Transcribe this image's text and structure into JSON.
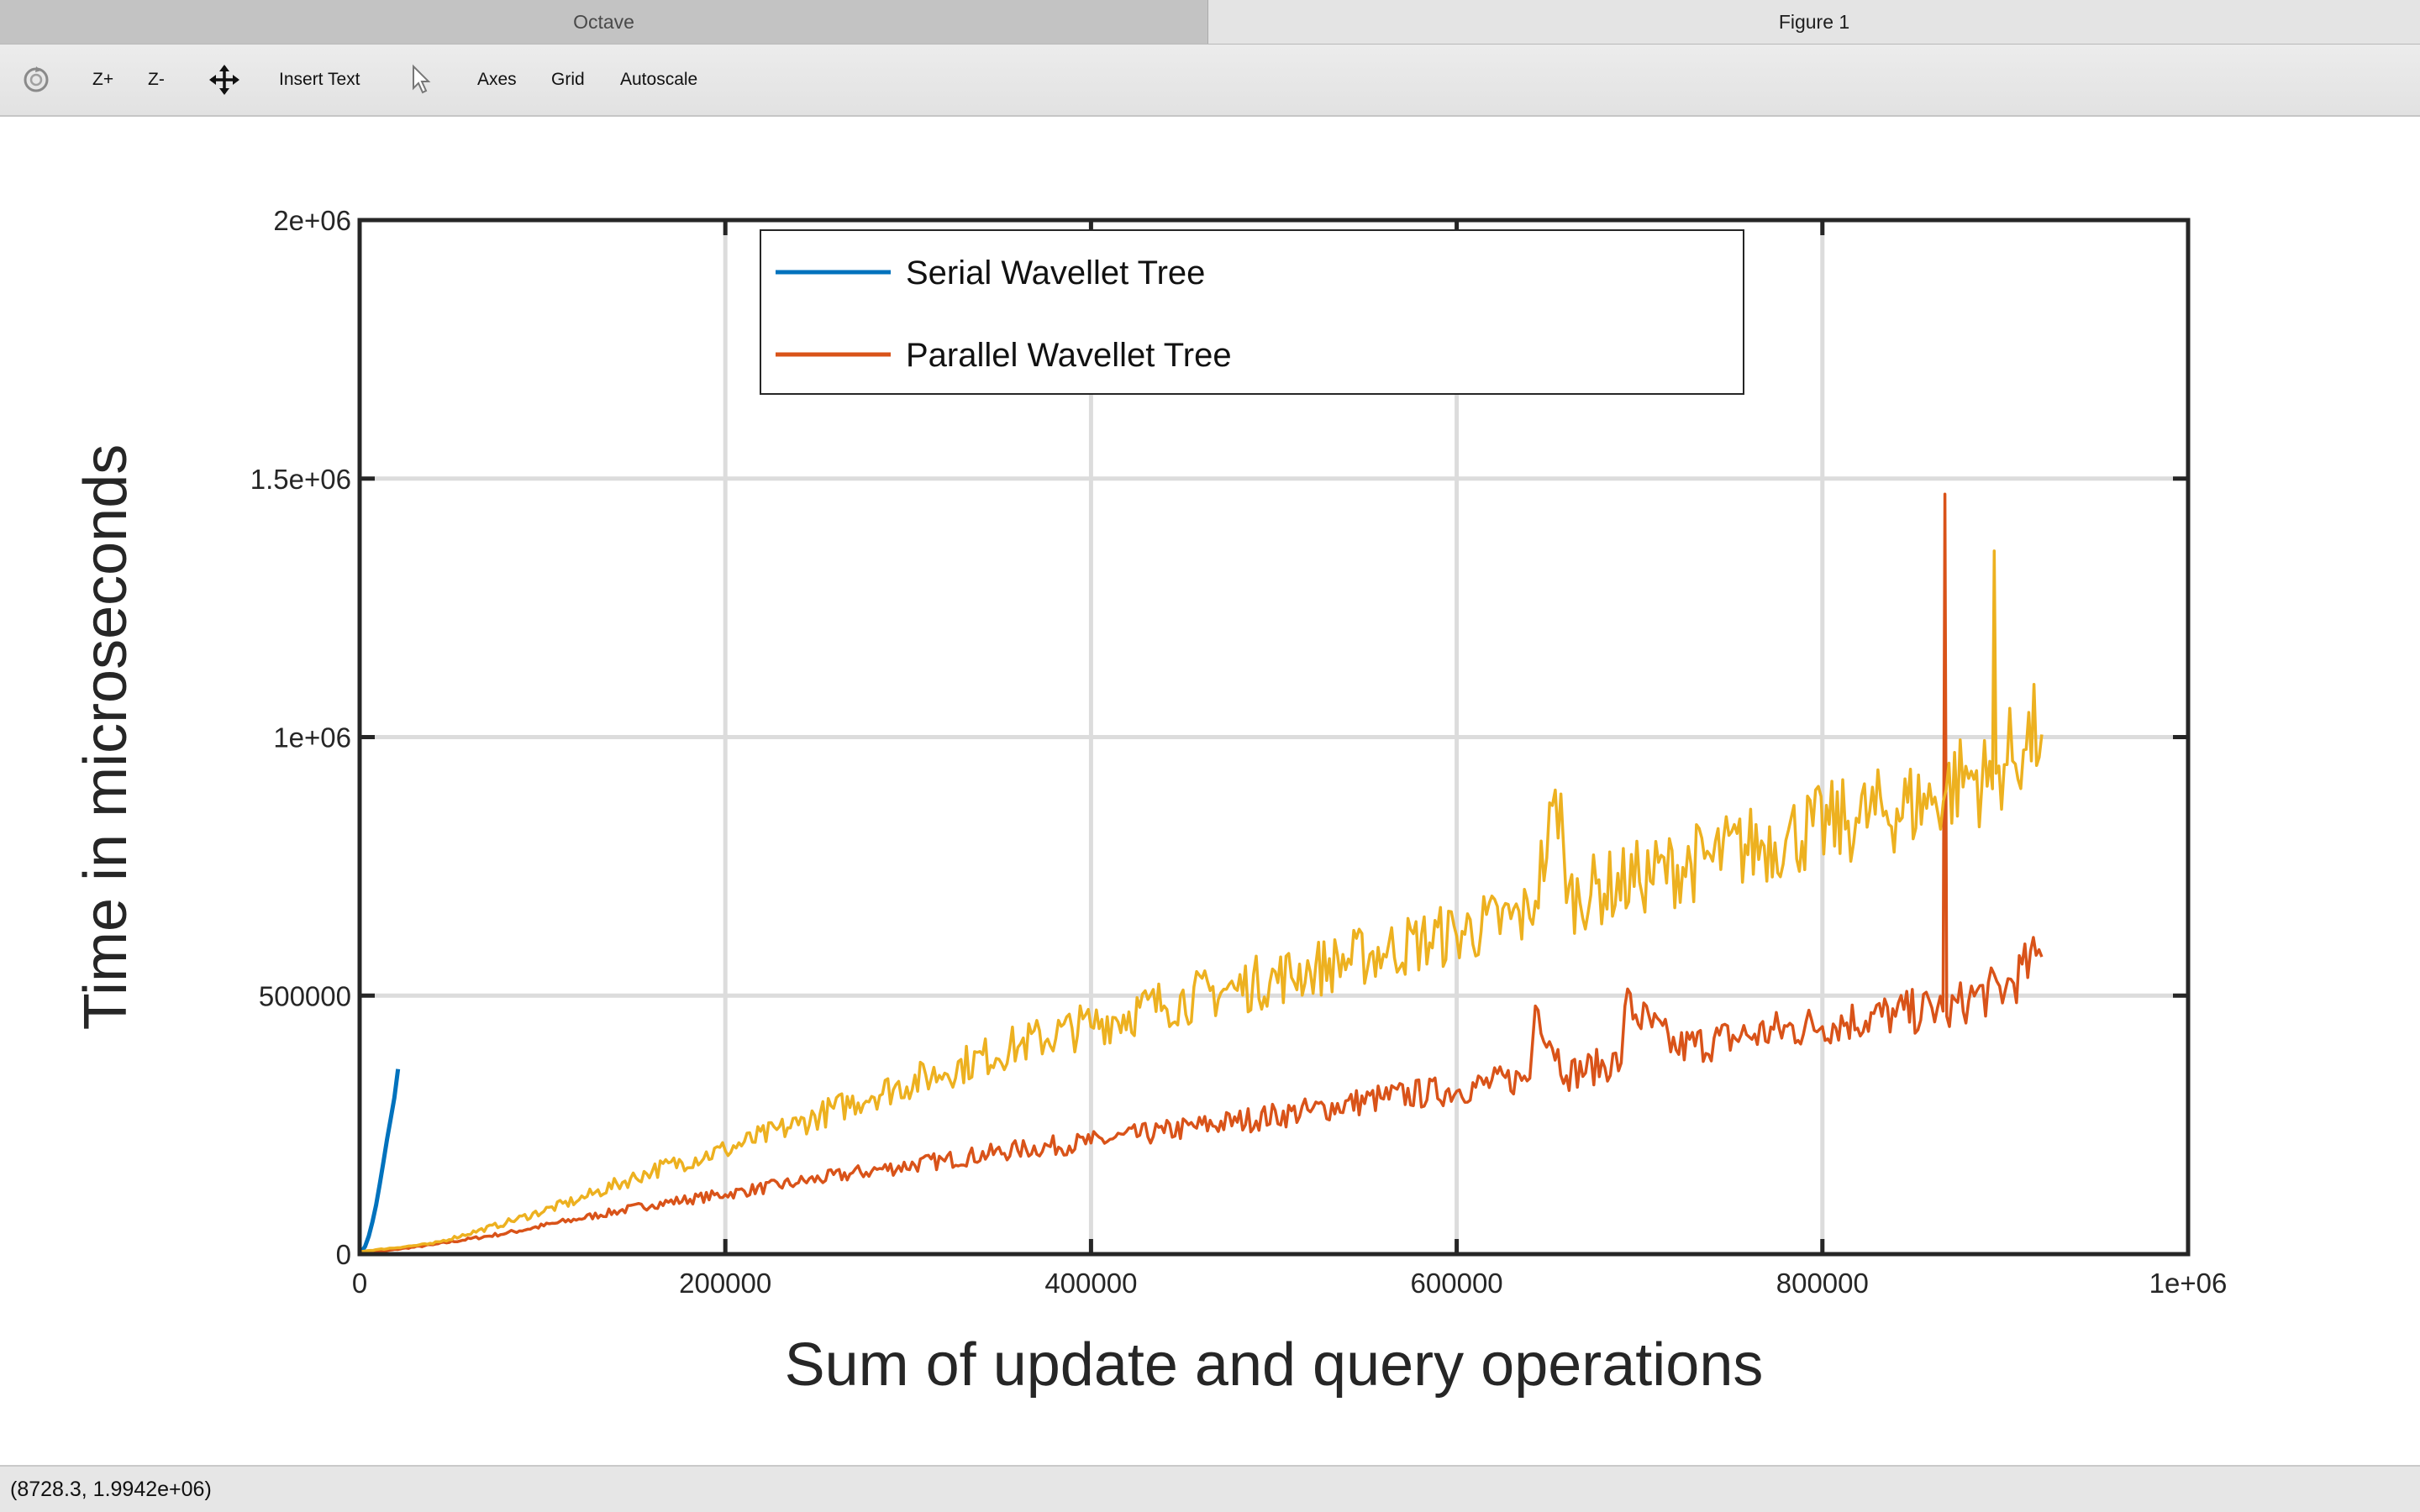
{
  "tabs": [
    {
      "label": "Octave"
    },
    {
      "label": "Figure 1"
    }
  ],
  "toolbar": {
    "rotate_icon": "rotate-icon",
    "zoom_in_label": "Z+",
    "zoom_out_label": "Z-",
    "pan_icon": "pan-icon",
    "insert_text_label": "Insert Text",
    "select_icon": "arrow-cursor-icon",
    "axes_label": "Axes",
    "grid_label": "Grid",
    "autoscale_label": "Autoscale"
  },
  "status": {
    "coords": "(8728.3, 1.9942e+06)"
  },
  "chart_data": {
    "type": "line",
    "title": "",
    "xlabel": "Sum of update and query operations",
    "ylabel": "Time in microseconds",
    "xlim": [
      0,
      1000000
    ],
    "ylim": [
      0,
      2000000
    ],
    "xticks": [
      0,
      200000,
      400000,
      600000,
      800000,
      1000000
    ],
    "xtick_labels": [
      "0",
      "200000",
      "400000",
      "600000",
      "800000",
      "1e+06"
    ],
    "yticks": [
      0,
      500000,
      1000000,
      1500000,
      2000000
    ],
    "ytick_labels": [
      "0",
      "500000",
      "1e+06",
      "1.5e+06",
      "2e+06"
    ],
    "grid": true,
    "legend_position": "top-center",
    "series": [
      {
        "name": "Serial Wavellet Tree",
        "color": "#0072bd",
        "x": [
          1000,
          3000,
          5000,
          7000,
          9000,
          11000,
          13000,
          15000,
          17000,
          19000,
          20000,
          21000
        ],
        "y": [
          4000,
          15000,
          35000,
          62000,
          95000,
          135000,
          178000,
          222000,
          262000,
          302000,
          330000,
          358000
        ]
      },
      {
        "name": "Parallel Wavellet Tree",
        "color": "#d95319",
        "x": [
          0,
          40000,
          80000,
          120000,
          160000,
          200000,
          240000,
          280000,
          320000,
          360000,
          400000,
          440000,
          480000,
          520000,
          560000,
          600000,
          640000,
          643000,
          660000,
          690000,
          692000,
          720000,
          760000,
          800000,
          840000,
          866000,
          867000,
          868000,
          880000,
          900000,
          920000
        ],
        "y": [
          0,
          18000,
          40000,
          68000,
          95000,
          115000,
          138000,
          160000,
          180000,
          200000,
          215000,
          235000,
          255000,
          275000,
          300000,
          315000,
          340000,
          480000,
          345000,
          370000,
          480000,
          395000,
          420000,
          440000,
          460000,
          470000,
          1470000,
          460000,
          490000,
          510000,
          575000
        ]
      },
      {
        "name": "",
        "color": "#edb120",
        "x": [
          0,
          40000,
          80000,
          120000,
          160000,
          200000,
          240000,
          280000,
          320000,
          360000,
          400000,
          440000,
          480000,
          520000,
          560000,
          600000,
          640000,
          657000,
          660000,
          700000,
          740000,
          780000,
          820000,
          860000,
          880000,
          893000,
          894000,
          895000,
          910000,
          920000
        ],
        "y": [
          5000,
          20000,
          60000,
          105000,
          160000,
          200000,
          250000,
          305000,
          350000,
          400000,
          440000,
          480000,
          510000,
          545000,
          580000,
          615000,
          650000,
          890000,
          680000,
          720000,
          760000,
          800000,
          835000,
          870000,
          920000,
          900000,
          1360000,
          930000,
          975000,
          1005000
        ]
      }
    ]
  }
}
